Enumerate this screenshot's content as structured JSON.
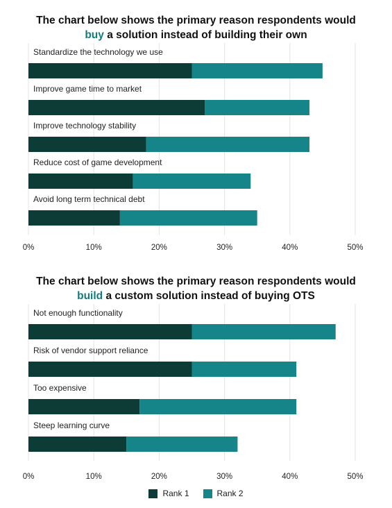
{
  "colors": {
    "rank1": "#0d3b36",
    "rank2": "#16858a",
    "grid": "#e3e3e3",
    "highlight": "#127c7c"
  },
  "titles": [
    {
      "line1": "The chart below shows the primary reason respondents would",
      "highlight": "buy",
      "rest": " a solution instead of building their own"
    },
    {
      "line1": "The chart below shows the primary reason respondents would",
      "highlight": "build",
      "rest": " a custom solution instead of buying OTS"
    }
  ],
  "legend": {
    "rank1": "Rank 1",
    "rank2": "Rank 2"
  },
  "chart_data": [
    {
      "type": "bar",
      "orientation": "horizontal",
      "stacked": true,
      "categories": [
        "Standardize the technology we use",
        "Improve game time to market",
        "Improve technology stability",
        "Reduce cost of game development",
        "Avoid long term technical debt"
      ],
      "series": [
        {
          "name": "Rank 1",
          "values": [
            25,
            27,
            18,
            16,
            14
          ]
        },
        {
          "name": "Rank 2",
          "values": [
            20,
            16,
            25,
            18,
            21
          ]
        }
      ],
      "xlim": [
        0,
        50
      ],
      "xticks": [
        "0%",
        "10%",
        "20%",
        "30%",
        "40%",
        "50%"
      ],
      "grid": true
    },
    {
      "type": "bar",
      "orientation": "horizontal",
      "stacked": true,
      "categories": [
        "Not enough functionality",
        "Risk of vendor support reliance",
        "Too expensive",
        "Steep learning curve"
      ],
      "series": [
        {
          "name": "Rank 1",
          "values": [
            25,
            25,
            17,
            15
          ]
        },
        {
          "name": "Rank 2",
          "values": [
            22,
            16,
            24,
            17
          ]
        }
      ],
      "xlim": [
        0,
        50
      ],
      "xticks": [
        "0%",
        "10%",
        "20%",
        "30%",
        "40%",
        "50%"
      ],
      "grid": true
    }
  ]
}
